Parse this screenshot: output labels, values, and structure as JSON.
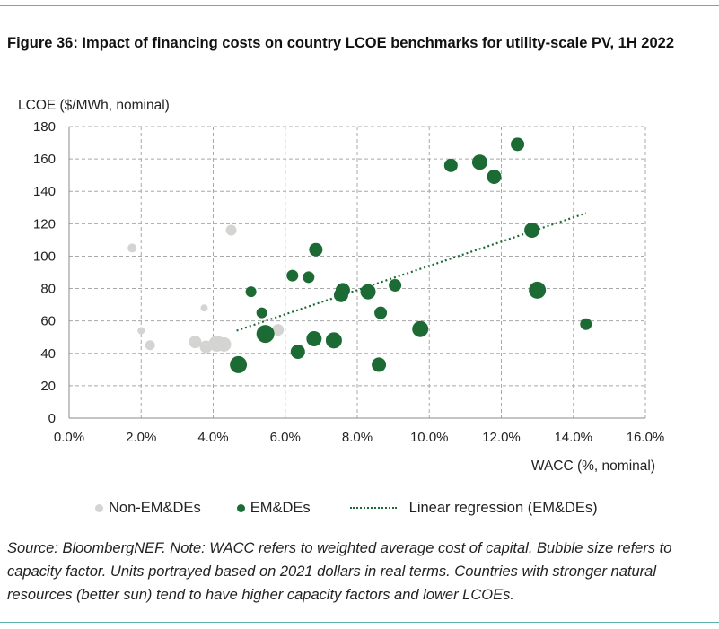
{
  "figure": {
    "title": "Figure 36: Impact of financing costs on country LCOE benchmarks for utility-scale PV, 1H 2022",
    "source_note": "Source: BloombergNEF. Note: WACC refers to weighted average cost of capital. Bubble size refers to capacity factor. Units portrayed based on 2021 dollars in real terms. Countries with stronger natural resources (better sun) tend to have higher capacity factors and lower LCOEs."
  },
  "legend": {
    "items": [
      {
        "label": "Non-EM&DEs",
        "kind": "dot",
        "color": "#d4d4d2"
      },
      {
        "label": "EM&DEs",
        "kind": "dot",
        "color": "#1c6a34"
      },
      {
        "label": "Linear regression (EM&DEs)",
        "kind": "dotted-line",
        "color": "#1c6a34"
      }
    ]
  },
  "chart_data": {
    "type": "scatter",
    "xlabel": "WACC (%, nominal)",
    "ylabel": "LCOE ($/MWh, nominal)",
    "xlim": [
      0,
      16
    ],
    "ylim": [
      0,
      180
    ],
    "x_ticks": [
      "0.0%",
      "2.0%",
      "4.0%",
      "6.0%",
      "8.0%",
      "10.0%",
      "12.0%",
      "14.0%",
      "16.0%"
    ],
    "y_ticks": [
      "0",
      "20",
      "40",
      "60",
      "80",
      "100",
      "120",
      "140",
      "160",
      "180"
    ],
    "grid": "dashed, both axes",
    "legend_position": "bottom",
    "series": [
      {
        "name": "Non-EM&DEs",
        "color": "#d4d4d2",
        "points": [
          {
            "x": 1.75,
            "y": 105,
            "size": 5
          },
          {
            "x": 2.0,
            "y": 54,
            "size": 4
          },
          {
            "x": 2.25,
            "y": 45,
            "size": 5.5
          },
          {
            "x": 3.5,
            "y": 47,
            "size": 7
          },
          {
            "x": 3.75,
            "y": 68,
            "size": 4
          },
          {
            "x": 3.8,
            "y": 44,
            "size": 7
          },
          {
            "x": 4.1,
            "y": 46,
            "size": 9
          },
          {
            "x": 4.3,
            "y": 45.5,
            "size": 8
          },
          {
            "x": 4.5,
            "y": 116,
            "size": 6
          },
          {
            "x": 5.8,
            "y": 54.5,
            "size": 6.5
          }
        ]
      },
      {
        "name": "EM&DEs",
        "color": "#1c6a34",
        "points": [
          {
            "x": 4.7,
            "y": 33,
            "size": 9.5
          },
          {
            "x": 5.05,
            "y": 78,
            "size": 6
          },
          {
            "x": 5.35,
            "y": 65,
            "size": 6
          },
          {
            "x": 5.45,
            "y": 52,
            "size": 10
          },
          {
            "x": 6.2,
            "y": 88,
            "size": 6.5
          },
          {
            "x": 6.35,
            "y": 41,
            "size": 8
          },
          {
            "x": 6.65,
            "y": 87,
            "size": 6.5
          },
          {
            "x": 6.8,
            "y": 49,
            "size": 8.5
          },
          {
            "x": 6.85,
            "y": 104,
            "size": 7.5
          },
          {
            "x": 7.35,
            "y": 48,
            "size": 9
          },
          {
            "x": 7.55,
            "y": 76,
            "size": 8
          },
          {
            "x": 7.6,
            "y": 79,
            "size": 8
          },
          {
            "x": 8.3,
            "y": 78,
            "size": 8.5
          },
          {
            "x": 8.6,
            "y": 33,
            "size": 8
          },
          {
            "x": 8.65,
            "y": 65,
            "size": 7
          },
          {
            "x": 9.05,
            "y": 82,
            "size": 7
          },
          {
            "x": 9.75,
            "y": 55,
            "size": 9
          },
          {
            "x": 10.6,
            "y": 156,
            "size": 7.5
          },
          {
            "x": 11.4,
            "y": 158,
            "size": 8.5
          },
          {
            "x": 11.8,
            "y": 149,
            "size": 8
          },
          {
            "x": 12.45,
            "y": 169,
            "size": 7.5
          },
          {
            "x": 12.85,
            "y": 116,
            "size": 8.5
          },
          {
            "x": 13.0,
            "y": 79,
            "size": 9.5
          },
          {
            "x": 14.35,
            "y": 58,
            "size": 6.5
          }
        ]
      }
    ],
    "regression": {
      "name": "Linear regression (EM&DEs)",
      "color": "#1c6a34",
      "style": "dotted",
      "x": [
        4.65,
        14.35
      ],
      "y": [
        54,
        126.5
      ]
    }
  }
}
